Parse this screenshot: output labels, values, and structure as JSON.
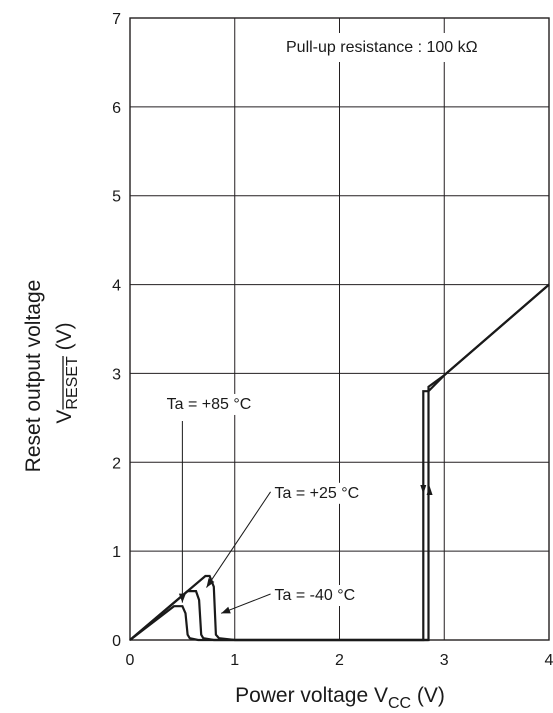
{
  "chart_data": {
    "type": "line",
    "xlabel": "Power voltage V",
    "xlabel_sub": "CC",
    "xlabel_unit": " (V)",
    "ylabel_line1": "Reset output voltage",
    "ylabel_line2_prefix": "V",
    "ylabel_line2_sub": "RESET",
    "ylabel_line2_unit": " (V)",
    "xlim": [
      0,
      4
    ],
    "ylim": [
      0,
      7
    ],
    "x_ticks": [
      0,
      1,
      2,
      3,
      4
    ],
    "y_ticks": [
      0,
      1,
      2,
      3,
      4,
      5,
      6,
      7
    ],
    "grid": true,
    "note": "Pull-up resistance : 100 kΩ",
    "series": [
      {
        "name": "Ta = +85 °C",
        "points": [
          [
            0,
            0
          ],
          [
            0.42,
            0.38
          ],
          [
            0.5,
            0.38
          ],
          [
            0.53,
            0.3
          ],
          [
            0.55,
            0.06
          ],
          [
            0.57,
            0.02
          ],
          [
            0.65,
            0.0
          ],
          [
            2.8,
            0.0
          ],
          [
            2.8,
            2.8
          ],
          [
            2.85,
            2.8
          ],
          [
            3.0,
            2.98
          ],
          [
            4.0,
            4.0
          ]
        ]
      },
      {
        "name": "Ta = +25 °C",
        "points": [
          [
            0,
            0
          ],
          [
            0.55,
            0.55
          ],
          [
            0.63,
            0.55
          ],
          [
            0.66,
            0.45
          ],
          [
            0.68,
            0.06
          ],
          [
            0.7,
            0.02
          ],
          [
            0.8,
            0.0
          ],
          [
            2.85,
            0.0
          ],
          [
            2.85,
            2.85
          ],
          [
            3.0,
            2.98
          ],
          [
            4.0,
            4.0
          ]
        ]
      },
      {
        "name": "Ta = -40 °C",
        "points": [
          [
            0,
            0
          ],
          [
            0.72,
            0.72
          ],
          [
            0.76,
            0.72
          ],
          [
            0.8,
            0.6
          ],
          [
            0.82,
            0.06
          ],
          [
            0.85,
            0.02
          ],
          [
            1.0,
            0.0
          ],
          [
            2.85,
            0.0
          ]
        ]
      }
    ],
    "annotations": [
      {
        "text": "Ta = +85 °C",
        "x": 0.35,
        "y": 2.6,
        "target": [
          0.5,
          0.42
        ]
      },
      {
        "text": "Ta = +25 °C",
        "x": 1.38,
        "y": 1.6,
        "target": [
          0.73,
          0.59
        ]
      },
      {
        "text": "Ta = -40 °C",
        "x": 1.38,
        "y": 0.45,
        "target": [
          0.87,
          0.3
        ]
      }
    ],
    "direction_arrows": [
      {
        "x": 2.8,
        "direction": "down"
      },
      {
        "x": 2.86,
        "direction": "up"
      }
    ]
  }
}
